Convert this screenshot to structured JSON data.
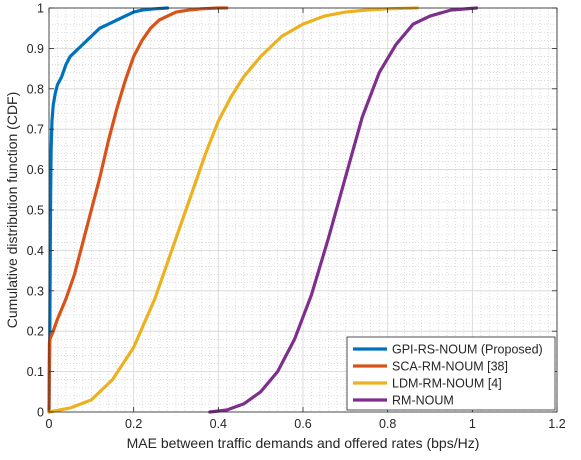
{
  "chart_data": {
    "type": "line",
    "title": "",
    "xlabel": "MAE between traffic demands and offered rates (bps/Hz)",
    "ylabel": "Cumulative distribution function (CDF)",
    "xlim": [
      0,
      1.2
    ],
    "ylim": [
      0,
      1
    ],
    "xticks": [
      0,
      0.2,
      0.4,
      0.6,
      0.8,
      1,
      1.2
    ],
    "xtick_labels": [
      "0",
      "0.2",
      "0.4",
      "0.6",
      "0.8",
      "1",
      "1.2"
    ],
    "yticks": [
      0,
      0.1,
      0.2,
      0.3,
      0.4,
      0.5,
      0.6,
      0.7,
      0.8,
      0.9,
      1
    ],
    "ytick_labels": [
      "0",
      "0.1",
      "0.2",
      "0.3",
      "0.4",
      "0.5",
      "0.6",
      "0.7",
      "0.8",
      "0.9",
      "1"
    ],
    "grid": true,
    "minor_grid": true,
    "legend_position": "bottom-right",
    "series": [
      {
        "name": "GPI-RS-NOUM (Proposed)",
        "color": "#0072BD",
        "x": [
          0,
          0.002,
          0.003,
          0.004,
          0.005,
          0.007,
          0.01,
          0.015,
          0.02,
          0.03,
          0.04,
          0.05,
          0.06,
          0.07,
          0.08,
          0.09,
          0.1,
          0.12,
          0.14,
          0.16,
          0.18,
          0.2,
          0.22,
          0.25,
          0.28
        ],
        "y": [
          0,
          0.2,
          0.4,
          0.55,
          0.65,
          0.72,
          0.76,
          0.79,
          0.81,
          0.83,
          0.86,
          0.88,
          0.89,
          0.9,
          0.91,
          0.92,
          0.93,
          0.95,
          0.96,
          0.97,
          0.98,
          0.99,
          0.995,
          0.998,
          1
        ]
      },
      {
        "name": "SCA-RM-NOUM [38]",
        "color": "#D95319",
        "x": [
          0,
          0.001,
          0.002,
          0.01,
          0.02,
          0.04,
          0.06,
          0.08,
          0.1,
          0.12,
          0.14,
          0.16,
          0.18,
          0.2,
          0.22,
          0.24,
          0.26,
          0.28,
          0.3,
          0.33,
          0.36,
          0.4,
          0.42
        ],
        "y": [
          0,
          0.17,
          0.18,
          0.2,
          0.23,
          0.28,
          0.34,
          0.42,
          0.5,
          0.58,
          0.67,
          0.75,
          0.82,
          0.88,
          0.92,
          0.95,
          0.97,
          0.98,
          0.99,
          0.995,
          0.998,
          1,
          1
        ]
      },
      {
        "name": "LDM-RM-NOUM [4]",
        "color": "#EDB120",
        "x": [
          0,
          0.05,
          0.1,
          0.15,
          0.2,
          0.25,
          0.28,
          0.31,
          0.34,
          0.37,
          0.4,
          0.43,
          0.46,
          0.5,
          0.55,
          0.6,
          0.65,
          0.7,
          0.75,
          0.8,
          0.87
        ],
        "y": [
          0,
          0.01,
          0.03,
          0.08,
          0.16,
          0.28,
          0.37,
          0.46,
          0.55,
          0.64,
          0.72,
          0.78,
          0.83,
          0.88,
          0.93,
          0.96,
          0.98,
          0.99,
          0.995,
          0.998,
          1
        ]
      },
      {
        "name": "RM-NOUM",
        "color": "#7E2F8E",
        "x": [
          0.38,
          0.42,
          0.46,
          0.5,
          0.54,
          0.58,
          0.62,
          0.66,
          0.7,
          0.74,
          0.78,
          0.82,
          0.86,
          0.9,
          0.95,
          1.01
        ],
        "y": [
          0,
          0.005,
          0.02,
          0.05,
          0.1,
          0.18,
          0.29,
          0.43,
          0.58,
          0.73,
          0.84,
          0.91,
          0.96,
          0.98,
          0.995,
          1
        ]
      }
    ]
  }
}
